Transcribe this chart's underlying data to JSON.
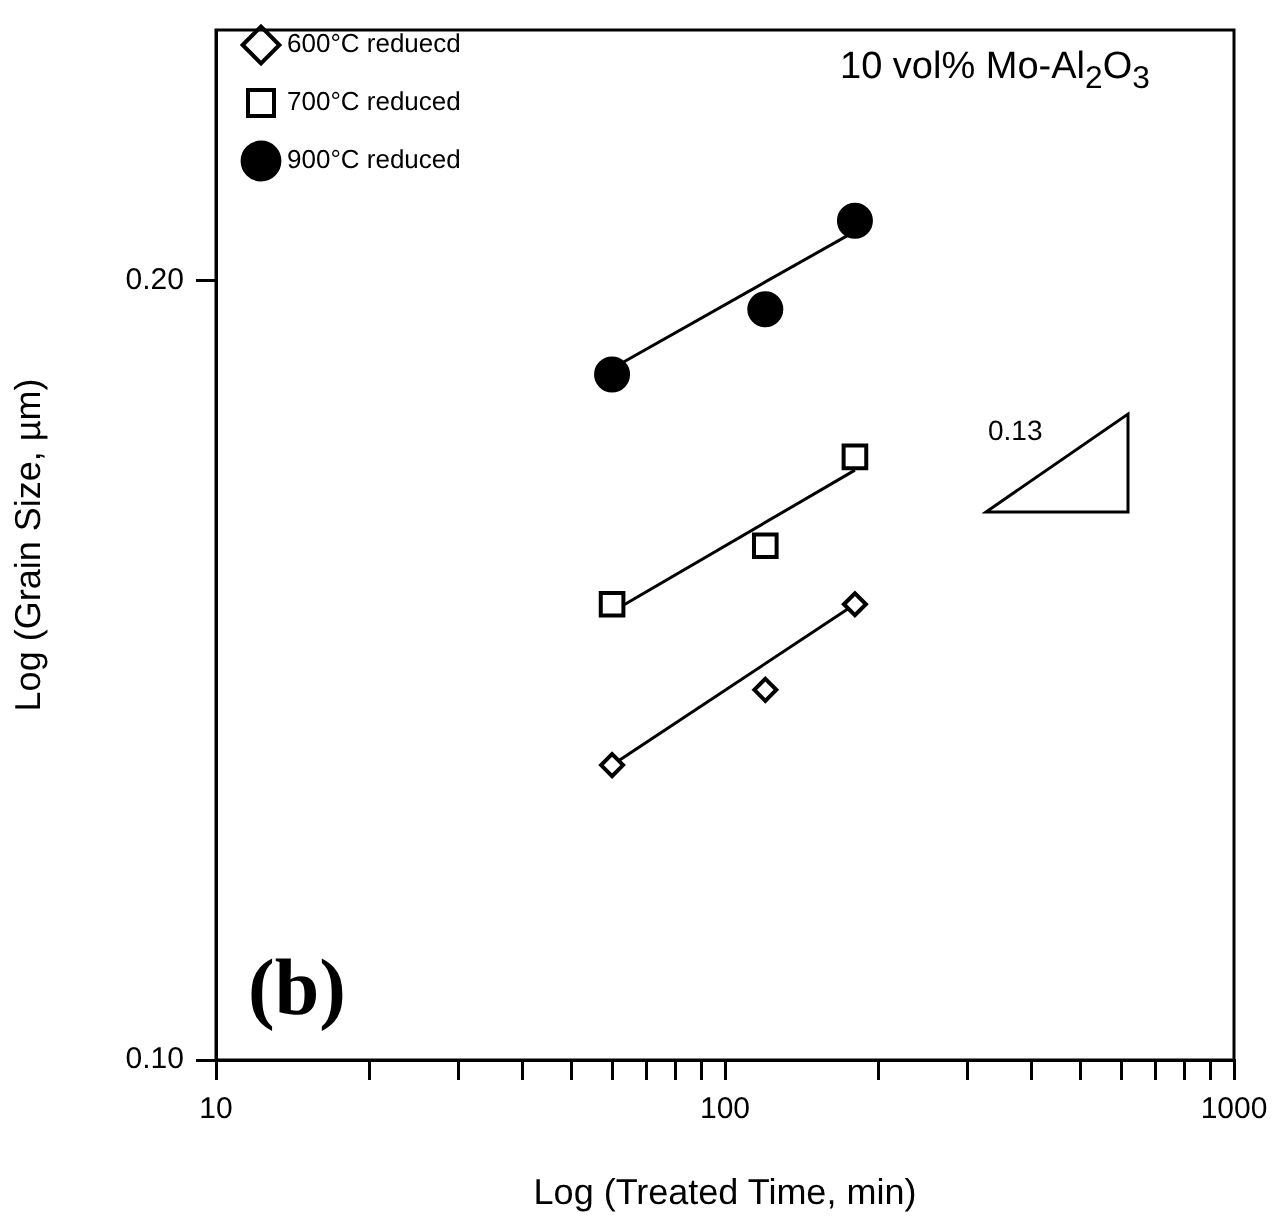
{
  "chart_data": {
    "type": "scatter",
    "xlabel": "Log (Treated Time, min)",
    "ylabel": "Log (Grain Size, µm)",
    "log": "xy",
    "grid": false,
    "legend": "top left",
    "xlim": [
      10,
      1000
    ],
    "ylim": [
      0.1,
      0.25
    ],
    "xticks": [
      10,
      {
        "value": 20,
        "label": null
      },
      {
        "value": 30,
        "label": null
      },
      {
        "value": 40,
        "label": null
      },
      {
        "value": 50,
        "label": null
      },
      {
        "value": 60,
        "label": null
      },
      {
        "value": 70,
        "label": null
      },
      {
        "value": 80,
        "label": null
      },
      {
        "value": 90,
        "label": null
      },
      100,
      {
        "value": 200,
        "label": null
      },
      {
        "value": 300,
        "label": null
      },
      {
        "value": 400,
        "label": null
      },
      {
        "value": 500,
        "label": null
      },
      {
        "value": 600,
        "label": null
      },
      {
        "value": 700,
        "label": null
      },
      {
        "value": 800,
        "label": null
      },
      {
        "value": 900,
        "label": null
      },
      1000
    ],
    "yticks": [
      {
        "value": 0.1,
        "label": "0.10"
      },
      {
        "value": 0.2,
        "label": "0.20"
      }
    ],
    "series": [
      {
        "name": "600°C reduecd",
        "marker": "diamond",
        "color": "#000000",
        "x": [
          60,
          120,
          180
        ],
        "values": [
          0.13,
          0.139,
          0.15
        ]
      },
      {
        "name": "700°C reduced",
        "marker": "square",
        "color": "#000000",
        "x": [
          60,
          120,
          180
        ],
        "values": [
          0.15,
          0.158,
          0.171
        ]
      },
      {
        "name": "900°C reduced",
        "marker": "circle",
        "color": "#000000",
        "x": [
          60,
          120,
          180
        ],
        "values": [
          0.184,
          0.195,
          0.211
        ]
      },
      {
        "type": "line",
        "marker": "none",
        "color": "#000000",
        "x": [
          60,
          180
        ],
        "values": [
          0.13,
          0.15
        ]
      },
      {
        "type": "line",
        "marker": "none",
        "color": "#000000",
        "x": [
          60,
          180
        ],
        "values": [
          0.149,
          0.169
        ]
      },
      {
        "type": "line",
        "marker": "none",
        "color": "#000000",
        "x": [
          60,
          180
        ],
        "values": [
          0.185,
          0.209
        ]
      }
    ],
    "annotations": [
      "10 vol% Mo-Al$_{2}$O$_{3}$",
      "0.13",
      "(b)"
    ]
  }
}
